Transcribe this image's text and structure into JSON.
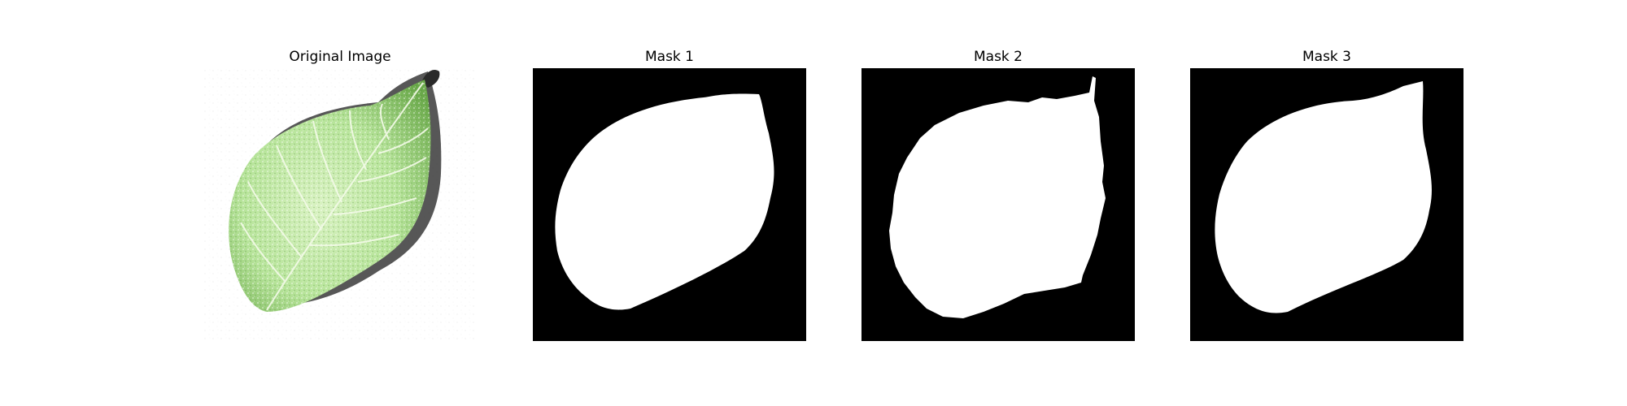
{
  "figure": {
    "panels": [
      {
        "title": "Original Image",
        "kind": "photo"
      },
      {
        "title": "Mask 1",
        "kind": "mask"
      },
      {
        "title": "Mask 2",
        "kind": "mask"
      },
      {
        "title": "Mask 3",
        "kind": "mask"
      }
    ]
  },
  "colors": {
    "background": "#ffffff",
    "mask_background": "#000000",
    "mask_foreground": "#ffffff",
    "leaf_light": "#d9f2c2",
    "leaf_mid": "#a6db83",
    "leaf_dark": "#5f9f3f",
    "leaf_shadow": "#3a3a3a",
    "stem": "#2a2a2a"
  }
}
